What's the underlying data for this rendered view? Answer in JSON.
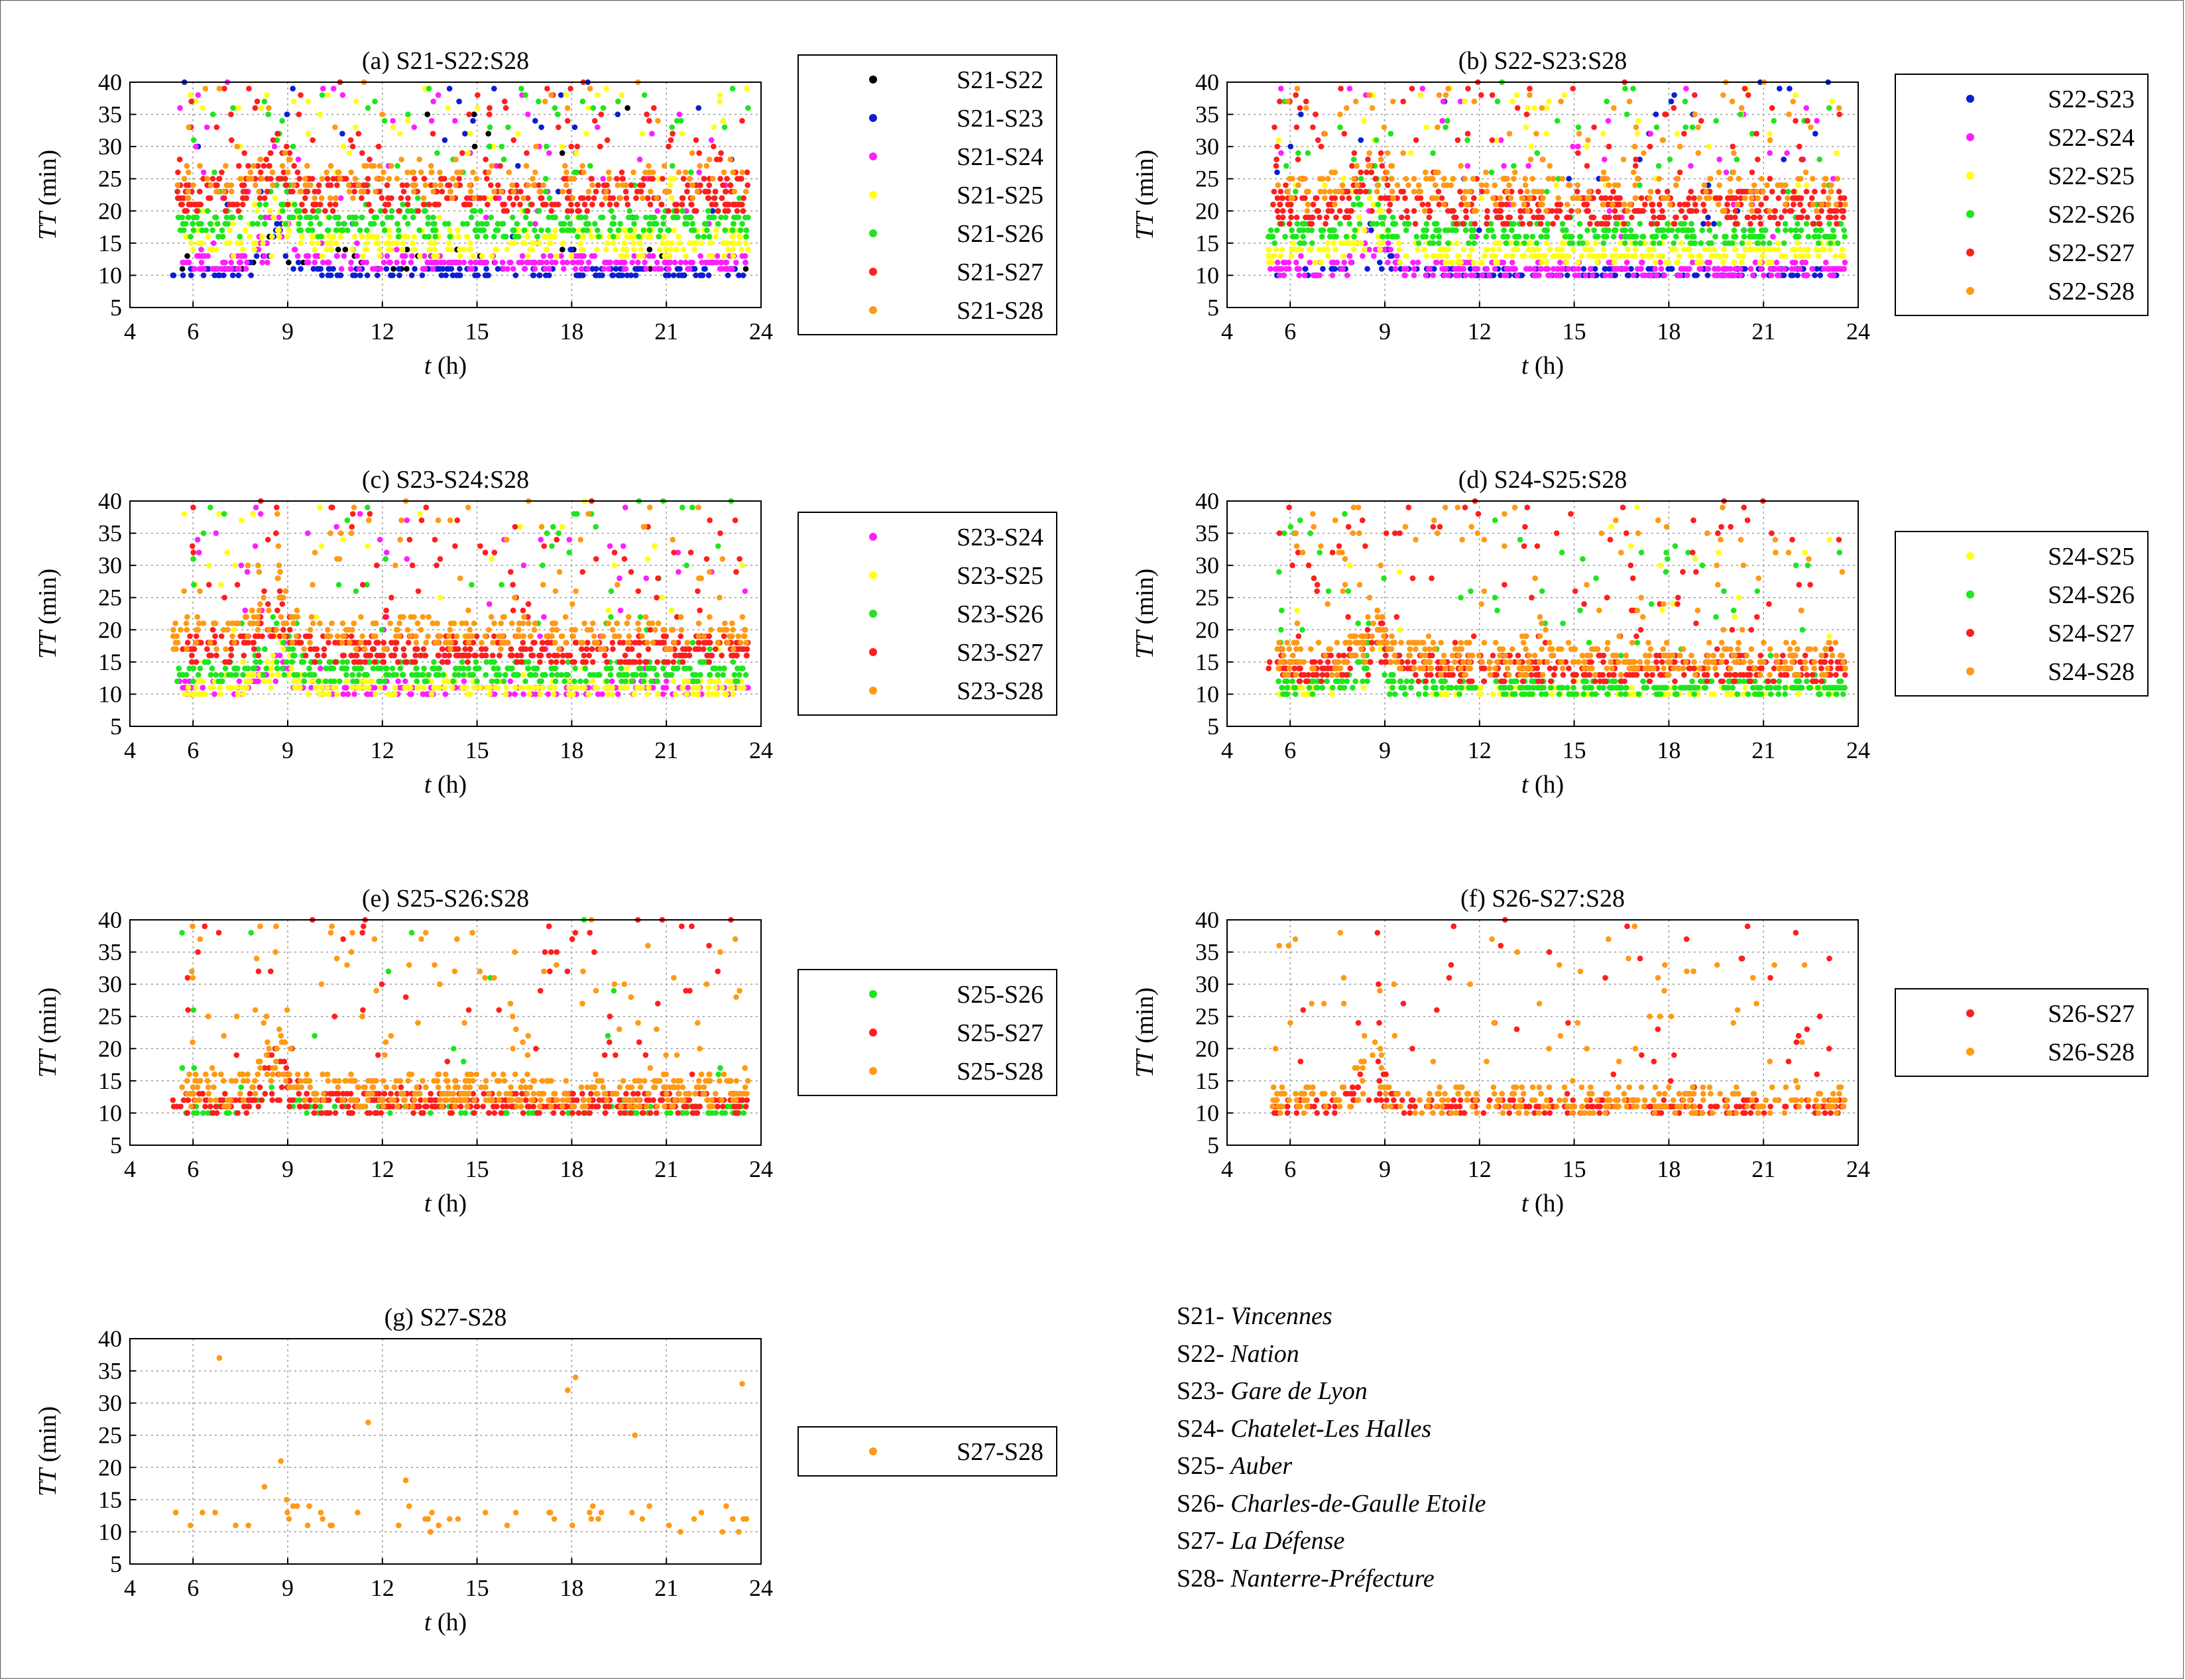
{
  "colors": {
    "S22": "#000000",
    "S23": "#0a1ed2",
    "S24": "#ff1eff",
    "S25": "#ffff14",
    "S26": "#1ee61e",
    "S27": "#ff1e1e",
    "S28": "#ff9a14"
  },
  "chart_data": [
    {
      "type": "scatter",
      "title": "(a) S21-S22:S28",
      "xlabel_var": "t",
      "xlabel_unit": " (h)",
      "ylabel_var": "TT",
      "ylabel_unit": " (min)",
      "xlim": [
        4,
        24
      ],
      "ylim": [
        5,
        40
      ],
      "xticks": [
        4,
        6,
        9,
        12,
        15,
        18,
        21,
        24
      ],
      "yticks": [
        5,
        10,
        15,
        20,
        25,
        30,
        35,
        40
      ],
      "grid": true,
      "legend": "right",
      "series": [
        {
          "name": "S21-S22",
          "key": "S22",
          "y_range": [
            10,
            40
          ],
          "typical": [
            10,
            14
          ],
          "density": 0.08
        },
        {
          "name": "S21-S23",
          "key": "S23",
          "y_range": [
            10,
            40
          ],
          "typical": [
            10,
            11
          ],
          "density": 0.4
        },
        {
          "name": "S21-S24",
          "key": "S24",
          "y_range": [
            10,
            40
          ],
          "typical": [
            11,
            13
          ],
          "density": 0.6
        },
        {
          "name": "S21-S25",
          "key": "S25",
          "y_range": [
            11,
            40
          ],
          "typical": [
            13,
            17
          ],
          "density": 0.7
        },
        {
          "name": "S21-S26",
          "key": "S26",
          "y_range": [
            12,
            40
          ],
          "typical": [
            16,
            20
          ],
          "density": 0.7
        },
        {
          "name": "S21-S27",
          "key": "S27",
          "y_range": [
            14,
            40
          ],
          "typical": [
            20,
            25
          ],
          "density": 0.8
        },
        {
          "name": "S21-S28",
          "key": "S28",
          "y_range": [
            15,
            40
          ],
          "typical": [
            22,
            27
          ],
          "density": 0.35
        }
      ]
    },
    {
      "type": "scatter",
      "title": "(b) S22-S23:S28",
      "xlabel_var": "t",
      "xlabel_unit": " (h)",
      "ylabel_var": "TT",
      "ylabel_unit": " (min)",
      "xlim": [
        4,
        24
      ],
      "ylim": [
        5,
        40
      ],
      "xticks": [
        4,
        6,
        9,
        12,
        15,
        18,
        21,
        24
      ],
      "yticks": [
        5,
        10,
        15,
        20,
        25,
        30,
        35,
        40
      ],
      "grid": true,
      "legend": "right",
      "series": [
        {
          "name": "S22-S23",
          "key": "S23",
          "y_range": [
            10,
            40
          ],
          "typical": [
            10,
            11
          ],
          "density": 0.4
        },
        {
          "name": "S22-S24",
          "key": "S24",
          "y_range": [
            10,
            40
          ],
          "typical": [
            10,
            12
          ],
          "density": 0.6
        },
        {
          "name": "S22-S25",
          "key": "S25",
          "y_range": [
            10,
            40
          ],
          "typical": [
            12,
            15
          ],
          "density": 0.7
        },
        {
          "name": "S22-S26",
          "key": "S26",
          "y_range": [
            11,
            40
          ],
          "typical": [
            15,
            18
          ],
          "density": 0.7
        },
        {
          "name": "S22-S27",
          "key": "S27",
          "y_range": [
            13,
            40
          ],
          "typical": [
            18,
            23
          ],
          "density": 0.9
        },
        {
          "name": "S22-S28",
          "key": "S28",
          "y_range": [
            14,
            40
          ],
          "typical": [
            20,
            26
          ],
          "density": 0.5
        }
      ]
    },
    {
      "type": "scatter",
      "title": "(c) S23-S24:S28",
      "xlabel_var": "t",
      "xlabel_unit": " (h)",
      "ylabel_var": "TT",
      "ylabel_unit": " (min)",
      "xlim": [
        4,
        24
      ],
      "ylim": [
        5,
        40
      ],
      "xticks": [
        4,
        6,
        9,
        12,
        15,
        18,
        21,
        24
      ],
      "yticks": [
        5,
        10,
        15,
        20,
        25,
        30,
        35,
        40
      ],
      "grid": true,
      "legend": "right",
      "series": [
        {
          "name": "S23-S24",
          "key": "S24",
          "y_range": [
            10,
            40
          ],
          "typical": [
            10,
            12
          ],
          "density": 0.5
        },
        {
          "name": "S23-S25",
          "key": "S25",
          "y_range": [
            10,
            40
          ],
          "typical": [
            10,
            12
          ],
          "density": 0.6
        },
        {
          "name": "S23-S26",
          "key": "S26",
          "y_range": [
            10,
            40
          ],
          "typical": [
            12,
            15
          ],
          "density": 0.7
        },
        {
          "name": "S23-S27",
          "key": "S27",
          "y_range": [
            11,
            40
          ],
          "typical": [
            15,
            19
          ],
          "density": 0.9
        },
        {
          "name": "S23-S28",
          "key": "S28",
          "y_range": [
            12,
            40
          ],
          "typical": [
            17,
            22
          ],
          "density": 0.6
        }
      ]
    },
    {
      "type": "scatter",
      "title": "(d) S24-S25:S28",
      "xlabel_var": "t",
      "xlabel_unit": " (h)",
      "ylabel_var": "TT",
      "ylabel_unit": " (min)",
      "xlim": [
        4,
        24
      ],
      "ylim": [
        5,
        40
      ],
      "xticks": [
        4,
        6,
        9,
        12,
        15,
        18,
        21,
        24
      ],
      "yticks": [
        5,
        10,
        15,
        20,
        25,
        30,
        35,
        40
      ],
      "grid": true,
      "legend": "right",
      "series": [
        {
          "name": "S24-S25",
          "key": "S25",
          "y_range": [
            10,
            40
          ],
          "typical": [
            10,
            11
          ],
          "density": 0.3
        },
        {
          "name": "S24-S26",
          "key": "S26",
          "y_range": [
            10,
            40
          ],
          "typical": [
            10,
            12
          ],
          "density": 0.7
        },
        {
          "name": "S24-S27",
          "key": "S27",
          "y_range": [
            10,
            40
          ],
          "typical": [
            12,
            16
          ],
          "density": 0.9
        },
        {
          "name": "S24-S28",
          "key": "S28",
          "y_range": [
            10,
            40
          ],
          "typical": [
            13,
            18
          ],
          "density": 0.8
        }
      ]
    },
    {
      "type": "scatter",
      "title": "(e) S25-S26:S28",
      "xlabel_var": "t",
      "xlabel_unit": " (h)",
      "ylabel_var": "TT",
      "ylabel_unit": " (min)",
      "xlim": [
        4,
        24
      ],
      "ylim": [
        5,
        40
      ],
      "xticks": [
        4,
        6,
        9,
        12,
        15,
        18,
        21,
        24
      ],
      "yticks": [
        5,
        10,
        15,
        20,
        25,
        30,
        35,
        40
      ],
      "grid": true,
      "legend": "right",
      "series": [
        {
          "name": "S25-S26",
          "key": "S26",
          "y_range": [
            10,
            40
          ],
          "typical": [
            10,
            11
          ],
          "density": 0.25
        },
        {
          "name": "S25-S27",
          "key": "S27",
          "y_range": [
            10,
            40
          ],
          "typical": [
            10,
            13
          ],
          "density": 0.9
        },
        {
          "name": "S25-S28",
          "key": "S28",
          "y_range": [
            10,
            40
          ],
          "typical": [
            11,
            16
          ],
          "density": 0.9
        }
      ]
    },
    {
      "type": "scatter",
      "title": "(f) S26-S27:S28",
      "xlabel_var": "t",
      "xlabel_unit": " (h)",
      "ylabel_var": "TT",
      "ylabel_unit": " (min)",
      "xlim": [
        4,
        24
      ],
      "ylim": [
        5,
        40
      ],
      "xticks": [
        4,
        6,
        9,
        12,
        15,
        18,
        21,
        24
      ],
      "yticks": [
        5,
        10,
        15,
        20,
        25,
        30,
        35,
        40
      ],
      "grid": true,
      "legend": "right",
      "series": [
        {
          "name": "S26-S27",
          "key": "S27",
          "y_range": [
            10,
            40
          ],
          "typical": [
            10,
            12
          ],
          "density": 0.55
        },
        {
          "name": "S26-S28",
          "key": "S28",
          "y_range": [
            10,
            40
          ],
          "typical": [
            10,
            14
          ],
          "density": 0.65
        }
      ]
    },
    {
      "type": "scatter",
      "title": "(g) S27-S28",
      "xlabel_var": "t",
      "xlabel_unit": " (h)",
      "ylabel_var": "TT",
      "ylabel_unit": " (min)",
      "xlim": [
        4,
        24
      ],
      "ylim": [
        5,
        40
      ],
      "xticks": [
        4,
        6,
        9,
        12,
        15,
        18,
        21,
        24
      ],
      "yticks": [
        5,
        10,
        15,
        20,
        25,
        30,
        35,
        40
      ],
      "grid": true,
      "legend": "right",
      "series": [
        {
          "name": "S27-S28",
          "key": "S28",
          "y_range": [
            10,
            40
          ],
          "typical": [
            10,
            14
          ],
          "density": 0.12
        }
      ]
    }
  ],
  "stations": [
    {
      "code": "S21- ",
      "name": "Vincennes"
    },
    {
      "code": "S22- ",
      "name": "Nation"
    },
    {
      "code": "S23- ",
      "name": "Gare de Lyon"
    },
    {
      "code": "S24- ",
      "name": "Chatelet-Les Halles"
    },
    {
      "code": "S25- ",
      "name": "Auber"
    },
    {
      "code": "S26- ",
      "name": "Charles-de-Gaulle Etoile"
    },
    {
      "code": "S27- ",
      "name": "La Défense"
    },
    {
      "code": "S28- ",
      "name": "Nanterre-Préfecture"
    }
  ]
}
